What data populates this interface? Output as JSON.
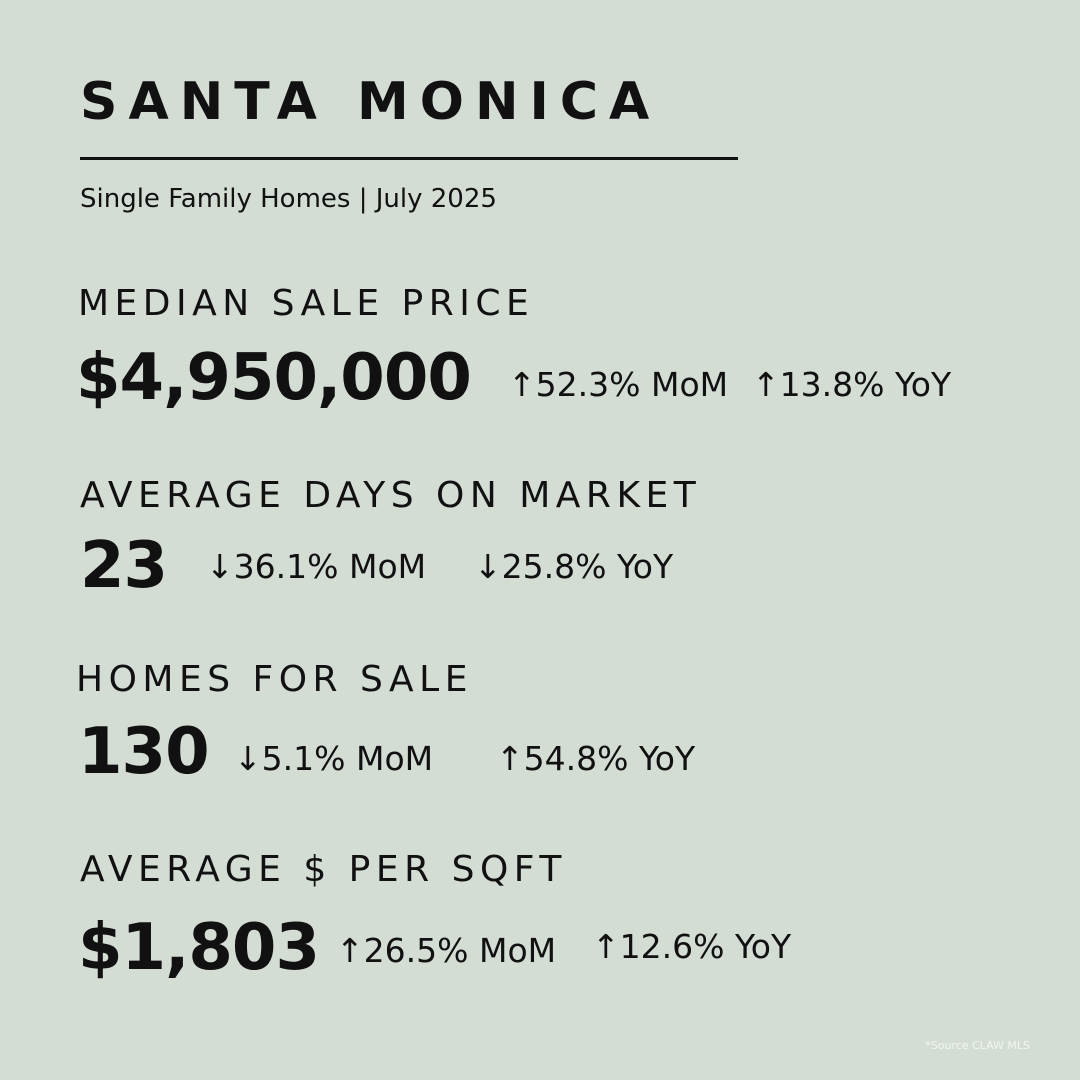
{
  "header": {
    "title": "SANTA MONICA",
    "subtitle": "Single Family Homes | July 2025"
  },
  "metrics": [
    {
      "label": "MEDIAN SALE PRICE",
      "value": "$4,950,000",
      "mom": {
        "arrow": "↑",
        "text": "52.3% MoM"
      },
      "yoy": {
        "arrow": "↑",
        "text": "13.8% YoY"
      }
    },
    {
      "label": "AVERAGE DAYS ON MARKET",
      "value": "23",
      "mom": {
        "arrow": "↓",
        "text": "36.1% MoM"
      },
      "yoy": {
        "arrow": "↓",
        "text": "25.8% YoY"
      }
    },
    {
      "label": "HOMES FOR SALE",
      "value": "130",
      "mom": {
        "arrow": "↓",
        "text": "5.1% MoM"
      },
      "yoy": {
        "arrow": "↑",
        "text": "54.8% YoY"
      }
    },
    {
      "label": "AVERAGE $ PER SQFT",
      "value": "$1,803",
      "mom": {
        "arrow": "↑",
        "text": "26.5% MoM"
      },
      "yoy": {
        "arrow": "↑",
        "text": "12.6% YoY"
      }
    }
  ],
  "footer": {
    "source": "*Source CLAW MLS"
  },
  "colors": {
    "background": "#d4ddd4",
    "text": "#111111"
  }
}
